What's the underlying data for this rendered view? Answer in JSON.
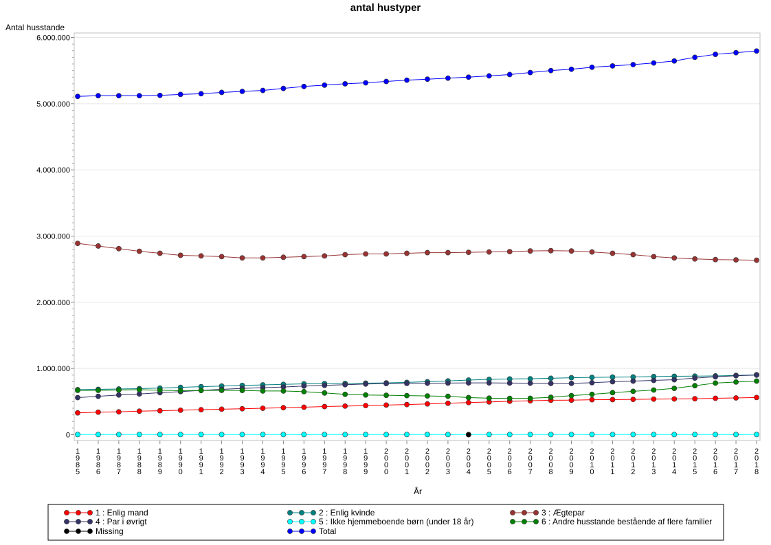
{
  "chart_data": {
    "type": "line",
    "title": "antal hustyper",
    "xlabel": "År",
    "ylabel": "Antal husstande",
    "ylim": [
      0,
      6000000
    ],
    "yticks": [
      0,
      1000000,
      2000000,
      3000000,
      4000000,
      5000000,
      6000000
    ],
    "ytick_labels": [
      "0",
      "1.000.000",
      "2.000.000",
      "3.000.000",
      "4.000.000",
      "5.000.000",
      "6.000.000"
    ],
    "grid": true,
    "legend_position": "bottom",
    "categories": [
      "1985",
      "1986",
      "1987",
      "1988",
      "1989",
      "1990",
      "1991",
      "1992",
      "1993",
      "1994",
      "1995",
      "1996",
      "1997",
      "1998",
      "1999",
      "2000",
      "2001",
      "2002",
      "2003",
      "2004",
      "2005",
      "2006",
      "2007",
      "2008",
      "2009",
      "2010",
      "2011",
      "2012",
      "2013",
      "2014",
      "2015",
      "2016",
      "2017",
      "2018"
    ],
    "series": [
      {
        "name": "1 : Enlig mand",
        "color": "#ff0000",
        "values": [
          330000,
          340000,
          345000,
          355000,
          362000,
          370000,
          378000,
          385000,
          392000,
          400000,
          408000,
          415000,
          425000,
          432000,
          440000,
          448000,
          455000,
          465000,
          475000,
          485000,
          495000,
          505000,
          512000,
          520000,
          522000,
          528000,
          530000,
          533000,
          537000,
          540000,
          543000,
          550000,
          555000,
          562000
        ]
      },
      {
        "name": "2 : Enlig kvinde",
        "color": "#008080",
        "values": [
          680000,
          685000,
          690000,
          695000,
          705000,
          715000,
          725000,
          735000,
          745000,
          752000,
          760000,
          768000,
          772000,
          775000,
          778000,
          782000,
          790000,
          800000,
          812000,
          825000,
          835000,
          842000,
          845000,
          852000,
          860000,
          865000,
          870000,
          872000,
          878000,
          882000,
          885000,
          888000,
          895000,
          905000
        ]
      },
      {
        "name": "3 : Ægtepar",
        "color": "#993333",
        "values": [
          2890000,
          2850000,
          2810000,
          2770000,
          2740000,
          2710000,
          2700000,
          2690000,
          2670000,
          2670000,
          2680000,
          2690000,
          2700000,
          2720000,
          2730000,
          2730000,
          2740000,
          2750000,
          2750000,
          2755000,
          2760000,
          2765000,
          2775000,
          2780000,
          2775000,
          2760000,
          2740000,
          2720000,
          2690000,
          2670000,
          2655000,
          2645000,
          2640000,
          2635000
        ]
      },
      {
        "name": "4 : Par i øvrigt",
        "color": "#333366",
        "values": [
          560000,
          580000,
          600000,
          615000,
          635000,
          650000,
          670000,
          685000,
          700000,
          710000,
          720000,
          735000,
          745000,
          755000,
          765000,
          772000,
          775000,
          778000,
          780000,
          782000,
          782000,
          780000,
          778000,
          775000,
          775000,
          785000,
          800000,
          810000,
          820000,
          830000,
          855000,
          875000,
          890000,
          900000
        ]
      },
      {
        "name": "5 : Ikke hjemmeboende børn (under 18 år)",
        "color": "#00ffff",
        "values": [
          2000,
          2000,
          2000,
          2000,
          2000,
          2000,
          2000,
          2000,
          2000,
          2000,
          2000,
          2000,
          2000,
          2000,
          2000,
          2000,
          2000,
          2000,
          2000,
          2000,
          2000,
          2000,
          2000,
          2000,
          2000,
          2000,
          2000,
          2000,
          2000,
          2000,
          2000,
          2000,
          2000,
          2000
        ]
      },
      {
        "name": "6 : Andre husstande bestående af flere familier",
        "color": "#008000",
        "values": [
          670000,
          670000,
          675000,
          680000,
          672000,
          665000,
          668000,
          670000,
          668000,
          660000,
          660000,
          650000,
          630000,
          610000,
          600000,
          595000,
          590000,
          585000,
          580000,
          560000,
          552000,
          548000,
          550000,
          565000,
          590000,
          610000,
          635000,
          655000,
          675000,
          700000,
          740000,
          780000,
          795000,
          810000
        ]
      },
      {
        "name": "Missing",
        "color": "#000000",
        "points": [
          {
            "x": "2004",
            "y": 0
          }
        ]
      },
      {
        "name": "Total",
        "color": "#0000ff",
        "values": [
          5110000,
          5120000,
          5120000,
          5120000,
          5125000,
          5140000,
          5150000,
          5170000,
          5185000,
          5200000,
          5230000,
          5260000,
          5280000,
          5300000,
          5315000,
          5335000,
          5355000,
          5370000,
          5385000,
          5400000,
          5420000,
          5440000,
          5470000,
          5500000,
          5520000,
          5550000,
          5570000,
          5590000,
          5615000,
          5645000,
          5700000,
          5745000,
          5770000,
          5795000
        ]
      }
    ]
  }
}
